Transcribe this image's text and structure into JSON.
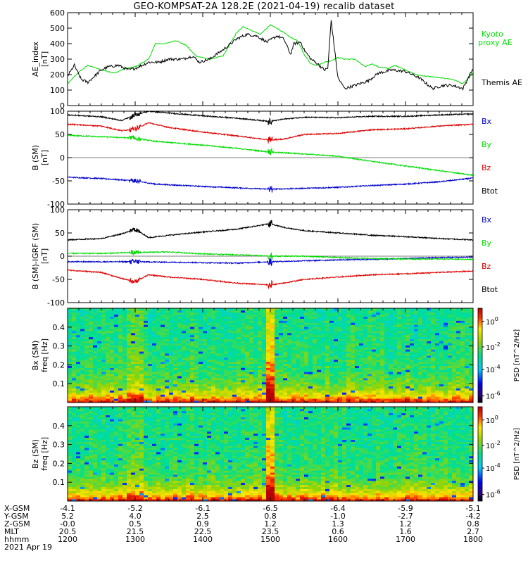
{
  "title": "GEO-KOMPSAT-2A 128.2E (2021-04-19) recalib dataset",
  "chart_data": [
    {
      "type": "line",
      "panel": "ae",
      "ylabel": "AE_index",
      "yunit": "[nT]",
      "ylim": [
        0,
        600
      ],
      "yticks": [
        "600",
        "500",
        "400",
        "300",
        "200",
        "100",
        "0"
      ],
      "xlim": [
        12.0,
        18.0
      ],
      "series": [
        {
          "name": "Kyoto proxy AE",
          "color": "#00dd00",
          "x": [
            12.0,
            12.15,
            12.3,
            12.5,
            12.7,
            12.85,
            13.0,
            13.2,
            13.3,
            13.45,
            13.6,
            13.75,
            13.9,
            14.1,
            14.3,
            14.5,
            14.6,
            14.75,
            14.85,
            15.0,
            15.1,
            15.2,
            15.3,
            15.4,
            15.5,
            15.6,
            15.7,
            15.8,
            15.9,
            16.0,
            16.1,
            16.25,
            16.4,
            16.5,
            16.6,
            16.75,
            16.85,
            17.0,
            17.15,
            17.3,
            17.5,
            17.7,
            17.85,
            18.0
          ],
          "y": [
            140,
            210,
            260,
            230,
            210,
            240,
            250,
            300,
            400,
            400,
            420,
            390,
            320,
            300,
            320,
            470,
            510,
            480,
            460,
            520,
            500,
            470,
            440,
            420,
            330,
            270,
            260,
            280,
            290,
            310,
            300,
            300,
            250,
            270,
            250,
            240,
            260,
            230,
            200,
            190,
            180,
            170,
            140,
            210
          ]
        },
        {
          "name": "Themis AE",
          "color": "#000000",
          "x": [
            12.0,
            12.1,
            12.2,
            12.3,
            12.4,
            12.5,
            12.6,
            12.75,
            12.9,
            13.0,
            13.1,
            13.2,
            13.35,
            13.5,
            13.7,
            13.85,
            13.95,
            14.1,
            14.3,
            14.5,
            14.65,
            14.8,
            14.95,
            15.1,
            15.2,
            15.3,
            15.35,
            15.45,
            15.5,
            15.6,
            15.7,
            15.75,
            15.8,
            15.85,
            15.9,
            16.0,
            16.1,
            16.25,
            16.45,
            16.6,
            16.8,
            17.0,
            17.2,
            17.4,
            17.55,
            17.7,
            17.85,
            18.0
          ],
          "y": [
            190,
            260,
            170,
            150,
            190,
            230,
            250,
            260,
            230,
            240,
            260,
            280,
            280,
            300,
            300,
            320,
            280,
            300,
            360,
            430,
            460,
            450,
            410,
            450,
            430,
            330,
            400,
            410,
            360,
            300,
            270,
            250,
            230,
            240,
            550,
            180,
            110,
            130,
            160,
            210,
            230,
            220,
            180,
            110,
            130,
            130,
            110,
            240
          ]
        }
      ]
    },
    {
      "type": "line",
      "panel": "b_sm",
      "ylabel": "B (SM)",
      "yunit": "[nT]",
      "ylim": [
        -100,
        100
      ],
      "yticks": [
        "100",
        "50",
        "0",
        "-50",
        "-100"
      ],
      "xlim": [
        12.0,
        18.0
      ],
      "series": [
        {
          "name": "Bx",
          "color": "#0000cc",
          "x": [
            12.0,
            12.5,
            13.0,
            13.3,
            14.0,
            14.5,
            15.0,
            15.5,
            16.0,
            16.5,
            17.0,
            17.5,
            18.0
          ],
          "y": [
            -42,
            -45,
            -50,
            -57,
            -62,
            -65,
            -68,
            -66,
            -64,
            -60,
            -57,
            -52,
            -44
          ]
        },
        {
          "name": "By",
          "color": "#00dd00",
          "x": [
            12.0,
            12.5,
            13.0,
            13.3,
            14.0,
            14.5,
            15.0,
            15.5,
            16.0,
            16.5,
            17.0,
            17.5,
            18.0
          ],
          "y": [
            48,
            45,
            42,
            35,
            27,
            20,
            12,
            8,
            3,
            -8,
            -18,
            -28,
            -38
          ]
        },
        {
          "name": "Bz",
          "color": "#dd0000",
          "x": [
            12.0,
            12.5,
            12.8,
            13.0,
            13.2,
            13.5,
            14.0,
            14.5,
            15.0,
            15.2,
            15.5,
            16.0,
            16.5,
            17.0,
            17.5,
            18.0
          ],
          "y": [
            72,
            68,
            58,
            62,
            75,
            65,
            55,
            47,
            38,
            40,
            50,
            52,
            60,
            62,
            68,
            72
          ]
        },
        {
          "name": "Btot",
          "color": "#000000",
          "x": [
            12.0,
            12.5,
            12.8,
            13.0,
            13.2,
            13.5,
            14.0,
            14.5,
            15.0,
            15.2,
            15.5,
            16.0,
            16.5,
            17.0,
            17.5,
            18.0
          ],
          "y": [
            92,
            88,
            80,
            92,
            100,
            96,
            90,
            85,
            78,
            83,
            87,
            86,
            89,
            89,
            92,
            94
          ]
        }
      ],
      "legend": [
        "Bx",
        "By",
        "Bz",
        "Btot"
      ]
    },
    {
      "type": "line",
      "panel": "b_sm_minus_igrf",
      "ylabel": "B (SM)-IGRF (SM)",
      "yunit": "[nT]",
      "ylim": [
        -100,
        100
      ],
      "yticks": [
        "100",
        "50",
        "0",
        "-50",
        "-100"
      ],
      "xlim": [
        12.0,
        18.0
      ],
      "series": [
        {
          "name": "Bx",
          "color": "#0000cc",
          "x": [
            12.0,
            12.5,
            13.0,
            13.5,
            14.0,
            14.5,
            15.0,
            15.5,
            16.0,
            16.5,
            17.0,
            17.5,
            18.0
          ],
          "y": [
            -12,
            -12,
            -12,
            -13,
            -14,
            -15,
            -12,
            -10,
            -8,
            -7,
            -5,
            -3,
            -2
          ]
        },
        {
          "name": "By",
          "color": "#00dd00",
          "x": [
            12.0,
            12.5,
            13.0,
            13.5,
            14.0,
            14.5,
            15.0,
            15.5,
            16.0,
            16.5,
            17.0,
            17.5,
            18.0
          ],
          "y": [
            6,
            6,
            8,
            9,
            5,
            3,
            0,
            0,
            -3,
            -5,
            -6,
            -6,
            -7
          ]
        },
        {
          "name": "Bz",
          "color": "#dd0000",
          "x": [
            12.0,
            12.5,
            12.8,
            13.0,
            13.2,
            13.5,
            14.0,
            14.5,
            15.0,
            15.2,
            15.5,
            16.0,
            16.5,
            17.0,
            17.5,
            18.0
          ],
          "y": [
            -30,
            -35,
            -48,
            -55,
            -40,
            -45,
            -50,
            -58,
            -62,
            -58,
            -50,
            -45,
            -40,
            -38,
            -35,
            -32
          ]
        },
        {
          "name": "Btot",
          "color": "#000000",
          "x": [
            12.0,
            12.5,
            12.8,
            13.0,
            13.2,
            13.5,
            14.0,
            14.5,
            15.0,
            15.2,
            15.5,
            16.0,
            16.5,
            17.0,
            17.5,
            18.0
          ],
          "y": [
            35,
            38,
            48,
            58,
            40,
            45,
            52,
            58,
            70,
            62,
            55,
            50,
            45,
            42,
            38,
            35
          ]
        }
      ],
      "legend": [
        "Bx",
        "By",
        "Bz",
        "Btot"
      ]
    },
    {
      "type": "heatmap",
      "panel": "bx_spectrogram",
      "ylabel": "Bx (SM)",
      "yunit": "freq [Hz]",
      "ylim": [
        0,
        0.5
      ],
      "yticks": [
        "0.4",
        "0.3",
        "0.2",
        "0.1"
      ],
      "colorbar": {
        "label": "PSD [nT^2/Hz]",
        "ticks": [
          "10^0",
          "10^-2",
          "10^-4",
          "10^-6"
        ]
      }
    },
    {
      "type": "heatmap",
      "panel": "bz_spectrogram",
      "ylabel": "Bz (SM)",
      "yunit": "freq [Hz]",
      "ylim": [
        0,
        0.5
      ],
      "yticks": [
        "0.4",
        "0.3",
        "0.2",
        "0.1"
      ],
      "colorbar": {
        "label": "PSD [nT^2/Hz]",
        "ticks": [
          "10^0",
          "10^-2",
          "10^-4",
          "10^-6"
        ]
      }
    }
  ],
  "ae_legend": {
    "kyoto_line1": "Kyoto",
    "kyoto_line2": "proxy AE",
    "themis": "Themis AE"
  },
  "ephemeris": {
    "labels": [
      "X-GSM",
      "Y-GSM",
      "Z-GSM",
      "MLT",
      "hhmm",
      "2021 Apr 19"
    ],
    "columns": [
      [
        "-4.1",
        "5.2",
        "-0.0",
        "20.5",
        "1200"
      ],
      [
        "-5.2",
        "4.0",
        "0.5",
        "21.5",
        "1300"
      ],
      [
        "-6.1",
        "2.5",
        "0.9",
        "22.5",
        "1400"
      ],
      [
        "-6.5",
        "0.8",
        "1.2",
        "23.5",
        "1500"
      ],
      [
        "-6.4",
        "-1.0",
        "1.3",
        "0.6",
        "1600"
      ],
      [
        "-5.9",
        "-2.7",
        "1.2",
        "1.6",
        "1700"
      ],
      [
        "-5.1",
        "-4.2",
        "0.8",
        "2.7",
        "1800"
      ]
    ]
  }
}
